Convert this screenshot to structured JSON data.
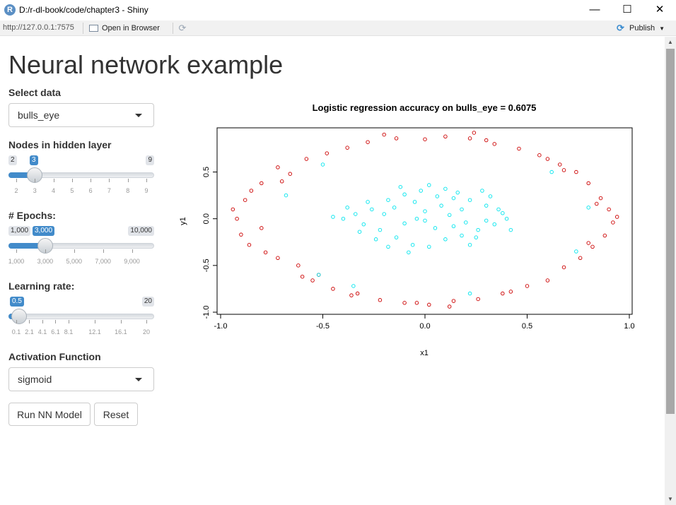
{
  "window": {
    "title": "D:/r-dl-book/code/chapter3 - Shiny",
    "minimize": "—",
    "maximize": "☐",
    "close": "✕"
  },
  "toolbar": {
    "url": "http://127.0.0.1:7575",
    "open_browser": "Open in Browser",
    "publish": "Publish"
  },
  "page": {
    "title": "Neural network example"
  },
  "controls": {
    "select_data": {
      "label": "Select data",
      "value": "bulls_eye"
    },
    "hidden_nodes": {
      "label": "Nodes in hidden layer",
      "min_label": "2",
      "max_label": "9",
      "value_label": "3",
      "value": 3,
      "min": 2,
      "max": 9,
      "grid": [
        "2",
        "3",
        "4",
        "5",
        "6",
        "7",
        "8",
        "9"
      ]
    },
    "epochs": {
      "label": "# Epochs:",
      "min_label": "1,000",
      "max_label": "10,000",
      "value_label": "3,000",
      "value": 3000,
      "min": 1000,
      "max": 10000,
      "grid": [
        "1,000",
        "3,000",
        "5,000",
        "7,000",
        "9,000"
      ]
    },
    "learning_rate": {
      "label": "Learning rate:",
      "min_label": "",
      "max_label": "20",
      "value_label": "0.5",
      "value": 0.5,
      "min": 0.1,
      "max": 20,
      "grid": [
        "0.1",
        "2.1",
        "4.1",
        "6.1",
        "8.1",
        "12.1",
        "16.1",
        "20"
      ]
    },
    "activation": {
      "label": "Activation Function",
      "value": "sigmoid"
    },
    "run_button": "Run NN Model",
    "reset_button": "Reset"
  },
  "chart_data": {
    "type": "scatter",
    "title": "Logistic regression accuracy on bulls_eye = 0.6075",
    "xlabel": "x1",
    "ylabel": "y1",
    "xlim": [
      -1.0,
      1.0
    ],
    "ylim": [
      -1.0,
      0.95
    ],
    "xticks": [
      "-1.0",
      "-0.5",
      "0.0",
      "0.5",
      "1.0"
    ],
    "yticks": [
      "-1.0",
      "-0.5",
      "0.0",
      "0.5"
    ],
    "colors": {
      "outer": "#cc0000",
      "inner": "#00e5ee"
    },
    "series": [
      {
        "points": [
          [
            -0.94,
            0.1
          ],
          [
            -0.92,
            0.0
          ],
          [
            -0.88,
            0.2
          ],
          [
            -0.9,
            -0.17
          ],
          [
            -0.85,
            0.3
          ],
          [
            -0.86,
            -0.28
          ],
          [
            -0.8,
            0.38
          ],
          [
            -0.78,
            -0.36
          ],
          [
            -0.72,
            0.55
          ],
          [
            -0.72,
            -0.42
          ],
          [
            -0.66,
            0.48
          ],
          [
            -0.62,
            -0.5
          ],
          [
            -0.58,
            0.64
          ],
          [
            -0.55,
            -0.66
          ],
          [
            -0.48,
            0.7
          ],
          [
            -0.45,
            -0.75
          ],
          [
            -0.38,
            0.76
          ],
          [
            -0.33,
            -0.8
          ],
          [
            -0.28,
            0.82
          ],
          [
            -0.22,
            -0.87
          ],
          [
            -0.14,
            0.86
          ],
          [
            -0.1,
            -0.9
          ],
          [
            0.0,
            0.85
          ],
          [
            0.02,
            -0.92
          ],
          [
            0.1,
            0.88
          ],
          [
            0.14,
            -0.88
          ],
          [
            0.22,
            0.86
          ],
          [
            0.26,
            -0.86
          ],
          [
            0.34,
            0.8
          ],
          [
            0.38,
            -0.8
          ],
          [
            0.46,
            0.75
          ],
          [
            0.5,
            -0.72
          ],
          [
            0.56,
            0.68
          ],
          [
            0.6,
            -0.66
          ],
          [
            0.66,
            0.58
          ],
          [
            0.68,
            -0.52
          ],
          [
            0.74,
            0.5
          ],
          [
            0.76,
            -0.42
          ],
          [
            0.8,
            0.38
          ],
          [
            0.82,
            -0.3
          ],
          [
            0.86,
            0.22
          ],
          [
            0.88,
            -0.18
          ],
          [
            0.9,
            0.1
          ],
          [
            0.92,
            -0.04
          ],
          [
            0.94,
            0.02
          ],
          [
            -0.2,
            0.9
          ],
          [
            0.24,
            0.92
          ],
          [
            -0.6,
            -0.62
          ],
          [
            0.68,
            0.52
          ],
          [
            0.8,
            -0.26
          ],
          [
            -0.8,
            -0.1
          ],
          [
            0.84,
            0.16
          ],
          [
            -0.7,
            0.4
          ],
          [
            0.6,
            0.64
          ],
          [
            -0.52,
            -0.6
          ],
          [
            0.42,
            -0.78
          ],
          [
            -0.36,
            -0.82
          ],
          [
            0.12,
            -0.94
          ],
          [
            -0.04,
            -0.9
          ],
          [
            0.3,
            0.84
          ]
        ]
      },
      {
        "points": [
          [
            -0.4,
            0.0
          ],
          [
            -0.34,
            0.05
          ],
          [
            -0.3,
            -0.06
          ],
          [
            -0.26,
            0.1
          ],
          [
            -0.22,
            -0.12
          ],
          [
            -0.18,
            0.2
          ],
          [
            -0.14,
            -0.2
          ],
          [
            -0.1,
            0.26
          ],
          [
            -0.06,
            -0.28
          ],
          [
            -0.02,
            0.3
          ],
          [
            0.02,
            -0.3
          ],
          [
            0.06,
            0.24
          ],
          [
            0.1,
            -0.22
          ],
          [
            0.14,
            0.22
          ],
          [
            0.18,
            -0.18
          ],
          [
            0.22,
            0.2
          ],
          [
            0.26,
            -0.12
          ],
          [
            0.3,
            0.14
          ],
          [
            0.34,
            -0.06
          ],
          [
            0.38,
            0.06
          ],
          [
            0.4,
            0.0
          ],
          [
            -0.2,
            0.05
          ],
          [
            -0.1,
            -0.05
          ],
          [
            0.0,
            0.08
          ],
          [
            0.05,
            -0.1
          ],
          [
            0.12,
            0.04
          ],
          [
            0.2,
            -0.04
          ],
          [
            -0.28,
            0.18
          ],
          [
            -0.15,
            0.12
          ],
          [
            0.25,
            -0.2
          ],
          [
            0.32,
            0.24
          ],
          [
            -0.05,
            0.18
          ],
          [
            0.08,
            0.14
          ],
          [
            0.16,
            0.28
          ],
          [
            -0.24,
            -0.22
          ],
          [
            0.02,
            0.36
          ],
          [
            -0.12,
            0.34
          ],
          [
            0.28,
            0.3
          ],
          [
            -0.32,
            -0.14
          ],
          [
            0.36,
            0.1
          ],
          [
            -0.45,
            0.02
          ],
          [
            0.42,
            -0.12
          ],
          [
            -0.08,
            -0.36
          ],
          [
            0.1,
            0.32
          ],
          [
            -0.18,
            -0.3
          ],
          [
            0.22,
            -0.28
          ],
          [
            -0.38,
            0.12
          ],
          [
            0.18,
            0.1
          ],
          [
            -0.04,
            0.0
          ],
          [
            0.3,
            -0.02
          ],
          [
            -0.52,
            -0.6
          ],
          [
            -0.68,
            0.25
          ],
          [
            0.74,
            -0.35
          ],
          [
            0.62,
            0.5
          ],
          [
            -0.35,
            -0.72
          ],
          [
            0.22,
            -0.8
          ],
          [
            0.8,
            0.12
          ],
          [
            -0.5,
            0.58
          ],
          [
            0.0,
            -0.02
          ],
          [
            0.14,
            -0.08
          ]
        ]
      }
    ]
  }
}
